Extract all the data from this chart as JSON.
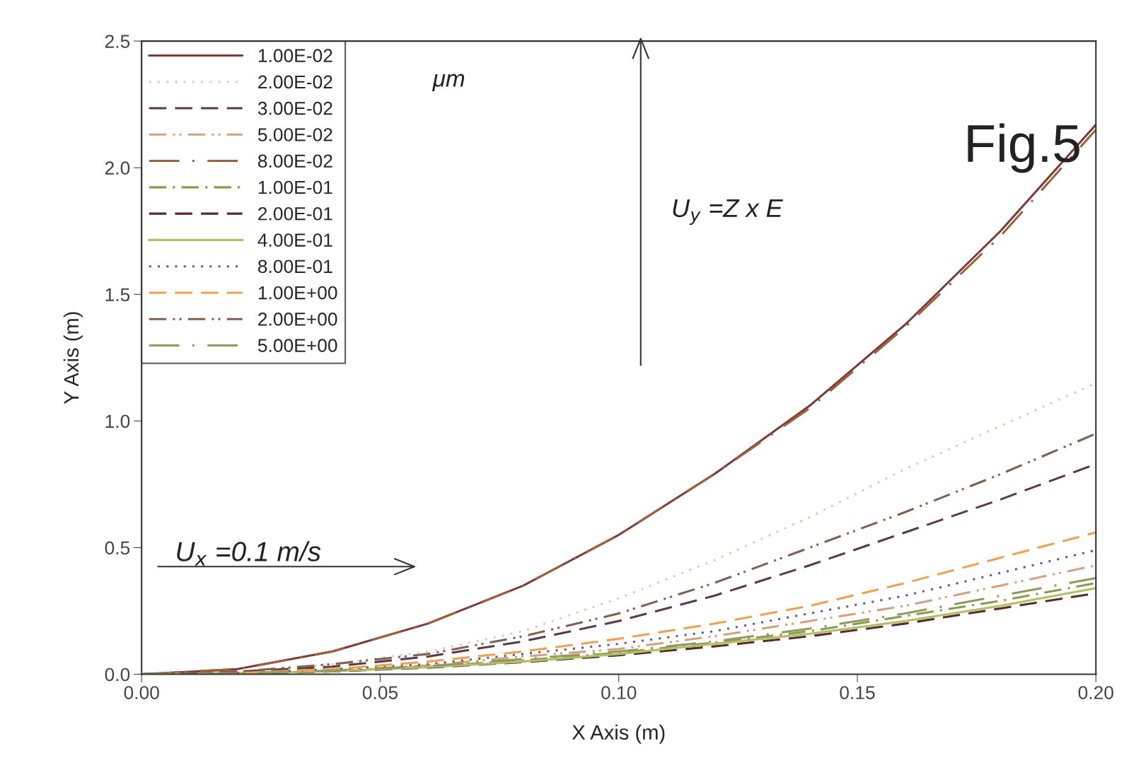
{
  "chart_data": {
    "type": "line",
    "xlabel": "X Axis (m)",
    "ylabel": "Y Axis (m)",
    "x": [
      0,
      0.02,
      0.04,
      0.06,
      0.08,
      0.1,
      0.12,
      0.14,
      0.16,
      0.18,
      0.2
    ],
    "xlim": [
      0,
      0.2
    ],
    "ylim": [
      0,
      2.5
    ],
    "xticks": [
      {
        "value": 0,
        "label": "0.00"
      },
      0.05,
      {
        "value": 0.1,
        "label": "0.10"
      },
      0.15,
      {
        "value": 0.2,
        "label": "0.20"
      }
    ],
    "yticks": [
      {
        "value": 0,
        "label": "0.0"
      },
      0.5,
      {
        "value": 1,
        "label": "1.0"
      },
      1.5,
      {
        "value": 2,
        "label": "2.0"
      },
      2.5
    ],
    "grid": false,
    "legend": "top left",
    "marker": "none",
    "annotations": [
      "μm",
      "Fig.5",
      "U$_{y}$ =Z x E",
      "U$_{x}$ =0.1 m/s"
    ],
    "series": [
      {
        "name": "1.00E-02",
        "color": "#7a3b3b",
        "line_style": "solid",
        "values": [
          0,
          0.02,
          0.09,
          0.2,
          0.35,
          0.55,
          0.79,
          1.06,
          1.38,
          1.75,
          2.17
        ]
      },
      {
        "name": "2.00E-02",
        "color": "#d8d0b8",
        "line_style": "dotted",
        "values": [
          0,
          0.01,
          0.04,
          0.09,
          0.17,
          0.3,
          0.45,
          0.62,
          0.81,
          0.98,
          1.15
        ]
      },
      {
        "name": "3.00E-02",
        "color": "#5a3a4a",
        "line_style": "dashed",
        "values": [
          0,
          0.01,
          0.03,
          0.07,
          0.13,
          0.21,
          0.31,
          0.43,
          0.56,
          0.69,
          0.83
        ]
      },
      {
        "name": "5.00E-02",
        "color": "#d4a080",
        "line_style": "dashdotdot",
        "values": [
          0,
          0.004,
          0.015,
          0.035,
          0.07,
          0.1,
          0.15,
          0.21,
          0.27,
          0.35,
          0.43
        ]
      },
      {
        "name": "8.00E-02",
        "color": "#a0603a",
        "line_style": "longdashdot",
        "values": [
          0,
          0.02,
          0.09,
          0.2,
          0.35,
          0.55,
          0.79,
          1.05,
          1.37,
          1.73,
          2.15
        ]
      },
      {
        "name": "1.00E-01",
        "color": "#8a9a50",
        "line_style": "dashdot",
        "values": [
          0,
          0.004,
          0.013,
          0.03,
          0.055,
          0.085,
          0.125,
          0.17,
          0.23,
          0.29,
          0.36
        ]
      },
      {
        "name": "2.00E-01",
        "color": "#5a2a2a",
        "line_style": "dashed",
        "values": [
          0,
          0.003,
          0.011,
          0.026,
          0.048,
          0.075,
          0.11,
          0.15,
          0.2,
          0.26,
          0.32
        ]
      },
      {
        "name": "4.00E-01",
        "color": "#b0c060",
        "line_style": "solid",
        "values": [
          0,
          0.004,
          0.012,
          0.028,
          0.05,
          0.08,
          0.12,
          0.16,
          0.21,
          0.27,
          0.34
        ]
      },
      {
        "name": "8.00E-01",
        "color": "#606080",
        "line_style": "dotted",
        "values": [
          0,
          0.005,
          0.02,
          0.04,
          0.08,
          0.12,
          0.17,
          0.24,
          0.31,
          0.4,
          0.49
        ]
      },
      {
        "name": "1.00E+00",
        "color": "#f0a050",
        "line_style": "dashed",
        "values": [
          0,
          0.005,
          0.02,
          0.05,
          0.09,
          0.14,
          0.2,
          0.27,
          0.36,
          0.46,
          0.56
        ]
      },
      {
        "name": "2.00E+00",
        "color": "#806050",
        "line_style": "dashdotdot",
        "values": [
          0,
          0.01,
          0.04,
          0.08,
          0.15,
          0.24,
          0.36,
          0.5,
          0.64,
          0.79,
          0.95
        ]
      },
      {
        "name": "5.00E+00",
        "color": "#909a60",
        "line_style": "longdashdot",
        "values": [
          0,
          0.004,
          0.014,
          0.032,
          0.06,
          0.09,
          0.13,
          0.18,
          0.24,
          0.31,
          0.38
        ]
      }
    ]
  }
}
